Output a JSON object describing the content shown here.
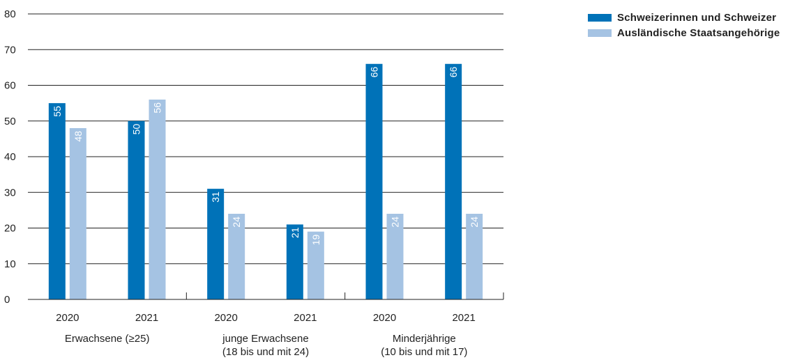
{
  "chart_data": {
    "type": "bar",
    "ylim": [
      0,
      80
    ],
    "yticks": [
      0,
      10,
      20,
      30,
      40,
      50,
      60,
      70,
      80
    ],
    "grid": true,
    "groups": [
      {
        "label_lines": [
          "Erwachsene (≥25)"
        ],
        "years": [
          "2020",
          "2021"
        ]
      },
      {
        "label_lines": [
          "junge Erwachsene",
          "(18 bis und mit 24)"
        ],
        "years": [
          "2020",
          "2021"
        ]
      },
      {
        "label_lines": [
          "Minderjährige",
          "(10 bis und mit 17)"
        ],
        "years": [
          "2020",
          "2021"
        ]
      }
    ],
    "series": [
      {
        "name": "Schweizerinnen und Schweizer",
        "color": "#0072B8",
        "values": [
          55,
          50,
          31,
          21,
          66,
          66
        ]
      },
      {
        "name": "Ausländische Staatsangehörige",
        "color": "#A5C3E3",
        "values": [
          48,
          56,
          24,
          19,
          24,
          24
        ]
      }
    ],
    "legend_position": "top-right"
  }
}
